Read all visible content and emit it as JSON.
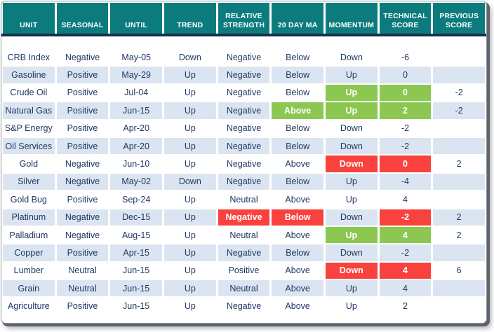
{
  "colors": {
    "header_teal": "#0c7b7e",
    "divider_navy": "#16314b",
    "stripe_blue": "#dbe5f1",
    "positive_green": "#8bc751",
    "negative_red": "#f9413e",
    "body_text": "#1f3864"
  },
  "table": {
    "columns": [
      {
        "key": "unit",
        "label": "UNIT"
      },
      {
        "key": "seasonal",
        "label": "SEASONAL"
      },
      {
        "key": "until",
        "label": "UNTIL"
      },
      {
        "key": "trend",
        "label": "TREND"
      },
      {
        "key": "relative_strength",
        "label": "RELATIVE STRENGTH"
      },
      {
        "key": "ma20",
        "label": "20 DAY MA"
      },
      {
        "key": "momentum",
        "label": "MOMENTUM"
      },
      {
        "key": "technical_score",
        "label": "TECHNICAL SCORE"
      },
      {
        "key": "previous_score",
        "label": "PREVIOUS SCORE"
      }
    ],
    "rows": [
      {
        "cells": {
          "unit": "CRB Index",
          "seasonal": "Negative",
          "until": "May-05",
          "trend": "Down",
          "relative_strength": "Negative",
          "ma20": "Below",
          "momentum": "Down",
          "technical_score": "-6",
          "previous_score": ""
        },
        "highlights": {}
      },
      {
        "cells": {
          "unit": "Gasoline",
          "seasonal": "Positive",
          "until": "May-29",
          "trend": "Up",
          "relative_strength": "Negative",
          "ma20": "Below",
          "momentum": "Up",
          "technical_score": "0",
          "previous_score": ""
        },
        "highlights": {}
      },
      {
        "cells": {
          "unit": "Crude Oil",
          "seasonal": "Positive",
          "until": "Jul-04",
          "trend": "Up",
          "relative_strength": "Negative",
          "ma20": "Below",
          "momentum": "Up",
          "technical_score": "0",
          "previous_score": "-2"
        },
        "highlights": {
          "momentum": "green",
          "technical_score": "green"
        }
      },
      {
        "cells": {
          "unit": "Natural Gas",
          "seasonal": "Positive",
          "until": "Jun-15",
          "trend": "Up",
          "relative_strength": "Negative",
          "ma20": "Above",
          "momentum": "Up",
          "technical_score": "2",
          "previous_score": "-2"
        },
        "highlights": {
          "ma20": "green",
          "momentum": "green",
          "technical_score": "green"
        }
      },
      {
        "cells": {
          "unit": "S&P Energy",
          "seasonal": "Positive",
          "until": "Apr-20",
          "trend": "Up",
          "relative_strength": "Negative",
          "ma20": "Below",
          "momentum": "Down",
          "technical_score": "-2",
          "previous_score": ""
        },
        "highlights": {}
      },
      {
        "cells": {
          "unit": "Oil Services",
          "seasonal": "Positive",
          "until": "Apr-20",
          "trend": "Up",
          "relative_strength": "Negative",
          "ma20": "Below",
          "momentum": "Down",
          "technical_score": "-2",
          "previous_score": ""
        },
        "highlights": {}
      },
      {
        "cells": {
          "unit": "Gold",
          "seasonal": "Negative",
          "until": "Jun-10",
          "trend": "Up",
          "relative_strength": "Negative",
          "ma20": "Above",
          "momentum": "Down",
          "technical_score": "0",
          "previous_score": "2"
        },
        "highlights": {
          "momentum": "red",
          "technical_score": "red"
        }
      },
      {
        "cells": {
          "unit": "Silver",
          "seasonal": "Negative",
          "until": "May-02",
          "trend": "Down",
          "relative_strength": "Negative",
          "ma20": "Below",
          "momentum": "Up",
          "technical_score": "-4",
          "previous_score": ""
        },
        "highlights": {}
      },
      {
        "cells": {
          "unit": "Gold Bug",
          "seasonal": "Positive",
          "until": "Sep-24",
          "trend": "Up",
          "relative_strength": "Neutral",
          "ma20": "Above",
          "momentum": "Up",
          "technical_score": "4",
          "previous_score": ""
        },
        "highlights": {}
      },
      {
        "cells": {
          "unit": "Platinum",
          "seasonal": "Negative",
          "until": "Dec-15",
          "trend": "Up",
          "relative_strength": "Negative",
          "ma20": "Below",
          "momentum": "Down",
          "technical_score": "-2",
          "previous_score": "2"
        },
        "highlights": {
          "relative_strength": "red",
          "ma20": "red",
          "technical_score": "red"
        }
      },
      {
        "cells": {
          "unit": "Palladium",
          "seasonal": "Negative",
          "until": "Aug-15",
          "trend": "Up",
          "relative_strength": "Neutral",
          "ma20": "Above",
          "momentum": "Up",
          "technical_score": "4",
          "previous_score": "2"
        },
        "highlights": {
          "momentum": "green",
          "technical_score": "green"
        }
      },
      {
        "cells": {
          "unit": "Copper",
          "seasonal": "Positive",
          "until": "Apr-15",
          "trend": "Up",
          "relative_strength": "Negative",
          "ma20": "Below",
          "momentum": "Down",
          "technical_score": "-2",
          "previous_score": ""
        },
        "highlights": {}
      },
      {
        "cells": {
          "unit": "Lumber",
          "seasonal": "Neutral",
          "until": "Jun-15",
          "trend": "Up",
          "relative_strength": "Positive",
          "ma20": "Above",
          "momentum": "Down",
          "technical_score": "4",
          "previous_score": "6"
        },
        "highlights": {
          "momentum": "red",
          "technical_score": "red"
        }
      },
      {
        "cells": {
          "unit": "Grain",
          "seasonal": "Neutral",
          "until": "Jun-15",
          "trend": "Up",
          "relative_strength": "Neutral",
          "ma20": "Above",
          "momentum": "Up",
          "technical_score": "4",
          "previous_score": ""
        },
        "highlights": {}
      },
      {
        "cells": {
          "unit": "Agriculture",
          "seasonal": "Positive",
          "until": "Jun-15",
          "trend": "Up",
          "relative_strength": "Negative",
          "ma20": "Above",
          "momentum": "Up",
          "technical_score": "2",
          "previous_score": ""
        },
        "highlights": {}
      }
    ]
  }
}
